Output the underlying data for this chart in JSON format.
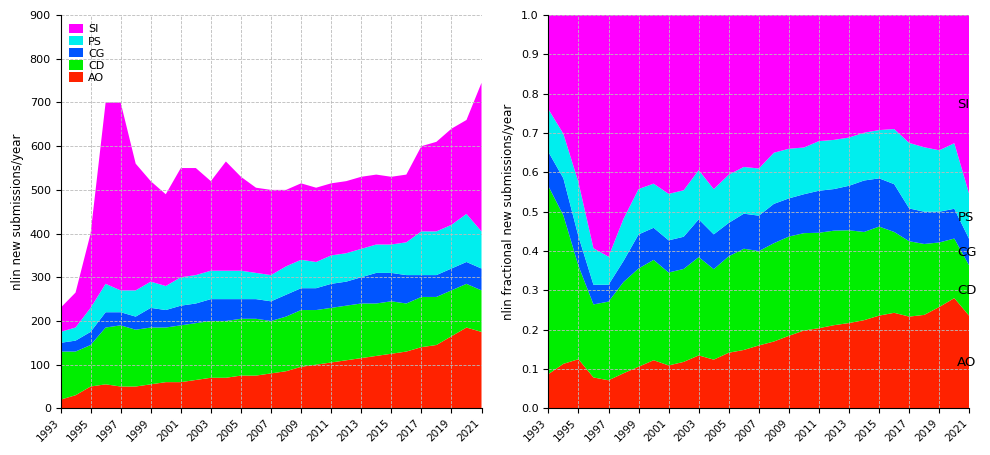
{
  "years": [
    1993,
    1994,
    1995,
    1996,
    1997,
    1998,
    1999,
    2000,
    2001,
    2002,
    2003,
    2004,
    2005,
    2006,
    2007,
    2008,
    2009,
    2010,
    2011,
    2012,
    2013,
    2014,
    2015,
    2016,
    2017,
    2018,
    2019,
    2020,
    2021
  ],
  "AO": [
    20,
    30,
    50,
    55,
    50,
    50,
    55,
    60,
    60,
    65,
    70,
    70,
    75,
    75,
    80,
    85,
    95,
    100,
    105,
    110,
    115,
    120,
    125,
    130,
    140,
    145,
    165,
    185,
    175
  ],
  "CD": [
    110,
    100,
    95,
    130,
    140,
    130,
    130,
    125,
    130,
    130,
    130,
    130,
    130,
    130,
    120,
    125,
    130,
    125,
    125,
    125,
    125,
    120,
    120,
    110,
    115,
    110,
    105,
    100,
    95
  ],
  "CG": [
    20,
    25,
    30,
    35,
    30,
    30,
    45,
    40,
    45,
    45,
    50,
    50,
    45,
    45,
    45,
    50,
    50,
    50,
    55,
    55,
    60,
    70,
    65,
    65,
    50,
    50,
    50,
    50,
    50
  ],
  "PS": [
    25,
    30,
    55,
    65,
    50,
    60,
    60,
    55,
    65,
    65,
    65,
    65,
    65,
    60,
    60,
    65,
    65,
    60,
    65,
    65,
    65,
    65,
    65,
    75,
    100,
    100,
    100,
    110,
    85
  ],
  "SI": [
    55,
    80,
    170,
    415,
    430,
    290,
    230,
    210,
    250,
    245,
    205,
    250,
    215,
    195,
    195,
    175,
    175,
    170,
    165,
    165,
    165,
    160,
    155,
    155,
    195,
    205,
    220,
    215,
    340
  ],
  "colors": [
    "#ff2200",
    "#00ee00",
    "#0055ff",
    "#00eeee",
    "#ff00ff"
  ],
  "labels_legend": [
    "SI",
    "PS",
    "CG",
    "CD",
    "AO"
  ],
  "labels_stack": [
    "AO",
    "CD",
    "CG",
    "PS",
    "SI"
  ],
  "ylabel_left": "nlin new submissions/year",
  "ylabel_right": "nlin fractional new submissions/year",
  "ylim_left": [
    0,
    900
  ],
  "ylim_right": [
    0,
    1.0
  ],
  "background": "#ffffff",
  "grid_color": "#bbbbbb"
}
